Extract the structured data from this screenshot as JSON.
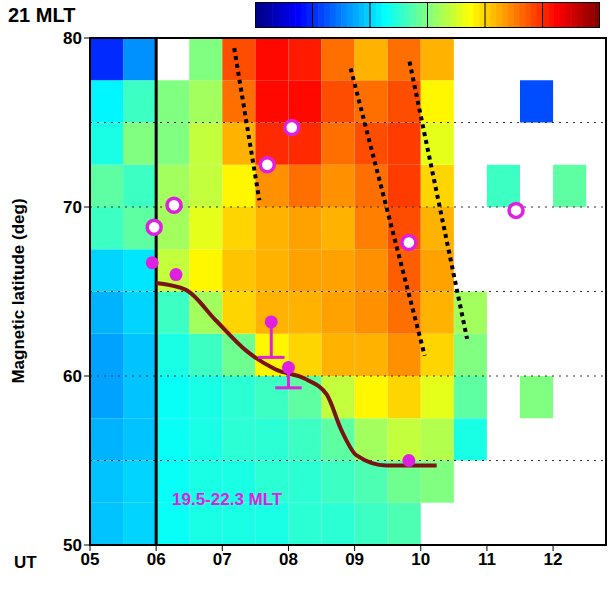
{
  "chart_data": {
    "type": "heatmap",
    "title": "21 MLT",
    "annotation": "19.5-22.3 MLT",
    "x_label": "UT",
    "y_label": "Magnetic latitude (deg)",
    "xlim": [
      5,
      12.8
    ],
    "xticks": [
      {
        "value": 5,
        "label": "05"
      },
      {
        "value": 6,
        "label": "06"
      },
      {
        "value": 7,
        "label": "07"
      },
      {
        "value": 8,
        "label": "08"
      },
      {
        "value": 9,
        "label": "09"
      },
      10,
      11,
      12
    ],
    "ylim": [
      50,
      80
    ],
    "yticks": [
      50,
      60,
      70,
      80
    ],
    "grid": true,
    "grid_y": [
      55,
      60,
      65,
      70,
      75
    ],
    "vertical_line_x": 6,
    "colorbar": {
      "range": [
        0,
        6
      ],
      "ticks": [
        1,
        2,
        3,
        4,
        5
      ]
    },
    "heatmap": {
      "x_edges": [
        5,
        5.5,
        6,
        6.5,
        7,
        7.5,
        8,
        8.5,
        9,
        9.5,
        10,
        10.5,
        11,
        11.5,
        12,
        12.5
      ],
      "y_edges": [
        50,
        52.5,
        55,
        57.5,
        60,
        62.5,
        65,
        67.5,
        70,
        72.5,
        75,
        77.5,
        80
      ],
      "cells": [
        [
          1.9,
          2.0,
          2.3,
          2.4,
          2.4,
          2.4,
          2.5,
          2.5,
          2.6,
          2.7,
          null,
          null,
          null,
          null,
          null
        ],
        [
          1.9,
          2.0,
          2.3,
          2.4,
          2.4,
          2.5,
          2.5,
          2.6,
          2.7,
          2.9,
          3.0,
          null,
          null,
          null,
          null
        ],
        [
          1.8,
          1.9,
          2.3,
          2.4,
          2.5,
          2.5,
          2.6,
          2.8,
          3.2,
          3.4,
          3.3,
          2.4,
          null,
          null,
          null
        ],
        [
          1.7,
          1.9,
          2.3,
          2.4,
          2.5,
          2.6,
          2.8,
          3.4,
          3.8,
          4.0,
          3.6,
          2.8,
          null,
          3.0,
          null
        ],
        [
          1.7,
          1.9,
          2.4,
          2.6,
          2.9,
          3.8,
          4.0,
          4.2,
          4.2,
          4.4,
          4.0,
          3.0,
          null,
          null,
          null
        ],
        [
          1.8,
          2.0,
          2.6,
          3.2,
          4.0,
          4.2,
          4.2,
          4.3,
          4.4,
          4.6,
          4.2,
          3.2,
          null,
          null,
          null
        ],
        [
          2.0,
          2.1,
          3.4,
          3.8,
          4.1,
          4.2,
          4.3,
          4.3,
          4.4,
          4.7,
          4.3,
          null,
          null,
          null,
          null
        ],
        [
          2.6,
          2.8,
          3.2,
          3.6,
          4.0,
          4.2,
          4.3,
          4.2,
          4.5,
          4.8,
          4.2,
          null,
          null,
          null,
          null
        ],
        [
          2.8,
          2.6,
          3.2,
          3.4,
          3.8,
          4.4,
          4.6,
          4.4,
          4.6,
          4.9,
          4.0,
          null,
          2.6,
          null,
          2.8
        ],
        [
          2.4,
          3.0,
          3.0,
          3.4,
          4.2,
          5.0,
          5.0,
          4.6,
          4.8,
          4.9,
          3.6,
          null,
          null,
          null,
          null
        ],
        [
          2.2,
          2.6,
          3.0,
          3.2,
          4.6,
          5.2,
          5.2,
          4.8,
          4.6,
          4.8,
          3.8,
          null,
          null,
          1.2,
          null
        ],
        [
          1.0,
          1.6,
          null,
          3.0,
          4.8,
          5.2,
          5.1,
          4.6,
          4.2,
          4.6,
          4.2,
          null,
          null,
          null,
          null
        ]
      ]
    },
    "series": [
      {
        "type": "line",
        "color": "#7a1414",
        "line_style": "solid",
        "x": [
          6.0,
          6.45,
          6.9,
          7.36,
          7.8,
          8.27,
          8.58,
          8.8,
          9.03,
          9.48,
          10.24
        ],
        "values": [
          65.5,
          65.1,
          63.3,
          61.5,
          60.4,
          59.8,
          58.9,
          56.8,
          55.3,
          54.7,
          54.7
        ]
      },
      {
        "type": "line",
        "color": "#000000",
        "line_style": "dotted",
        "x": [
          7.18,
          7.56
        ],
        "values": [
          79.4,
          70.4
        ]
      },
      {
        "type": "line",
        "color": "#000000",
        "line_style": "dotted",
        "x": [
          8.94,
          10.06
        ],
        "values": [
          78.2,
          61.2
        ]
      },
      {
        "type": "line",
        "color": "#000000",
        "line_style": "dotted",
        "x": [
          9.83,
          10.7
        ],
        "values": [
          78.6,
          62.2
        ]
      },
      {
        "type": "scatter",
        "marker": "open_circle",
        "color": "#e020e0",
        "x": [
          5.97,
          6.27,
          7.68,
          8.05,
          9.82,
          11.44
        ],
        "values": [
          68.8,
          70.1,
          72.5,
          74.7,
          67.9,
          69.8
        ]
      },
      {
        "type": "scatter",
        "marker": "circle",
        "color": "#e020e0",
        "x": [
          5.94,
          6.3,
          7.74,
          8.0,
          9.82
        ],
        "values": [
          66.7,
          66.0,
          63.2,
          60.5,
          55.0
        ],
        "error_low": [
          null,
          null,
          2.1,
          1.2,
          null
        ]
      }
    ]
  }
}
